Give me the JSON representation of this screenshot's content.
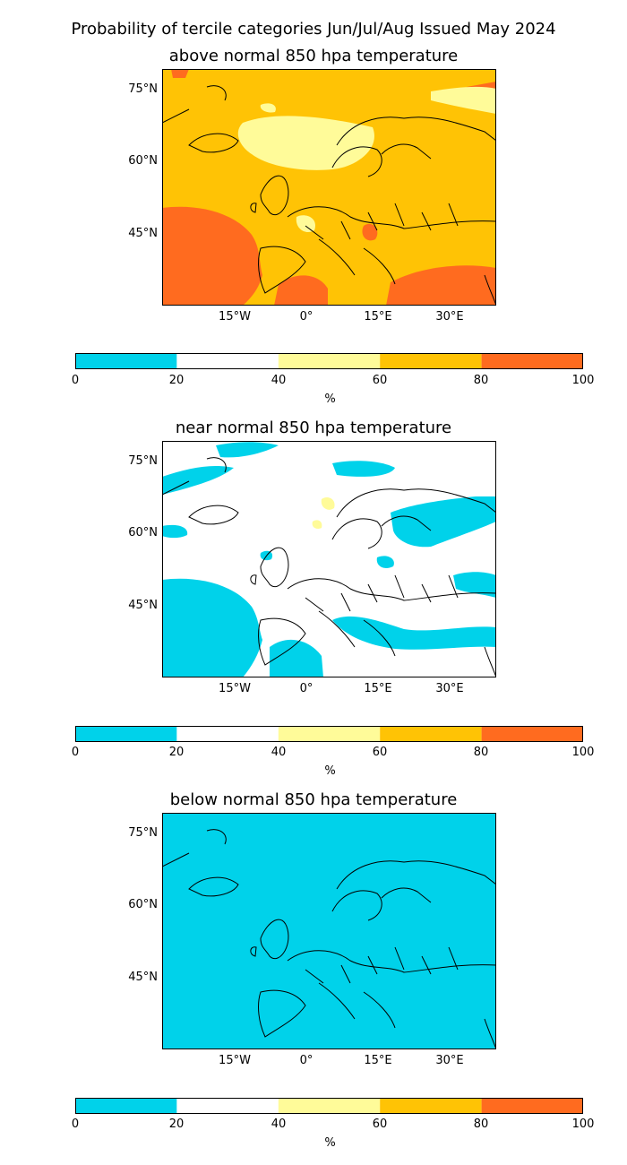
{
  "figure": {
    "suptitle": "Probability of tercile categories Jun/Jul/Aug Issued May 2024"
  },
  "colors": {
    "blue": "#00d2ea",
    "white": "#ffffff",
    "lightyellow": "#fffb99",
    "amber": "#ffc305",
    "orange": "#ff6b1f",
    "border": "#000000"
  },
  "axes": {
    "lat_ticks": [
      "75°N",
      "60°N",
      "45°N"
    ],
    "lon_ticks": [
      "15°W",
      "0°",
      "15°E",
      "30°E"
    ]
  },
  "colorbar": {
    "ticks": [
      "0",
      "20",
      "40",
      "60",
      "80",
      "100"
    ],
    "unit": "%",
    "bin_colors": [
      "#00d2ea",
      "#ffffff",
      "#fffb99",
      "#ffc305",
      "#ff6b1f"
    ]
  },
  "panels": [
    {
      "title": "above normal 850 hpa temperature",
      "dominant_category": "60-80"
    },
    {
      "title": "near normal 850 hpa temperature",
      "dominant_category": "20-40"
    },
    {
      "title": "below normal 850 hpa temperature",
      "dominant_category": "0-20"
    }
  ]
}
